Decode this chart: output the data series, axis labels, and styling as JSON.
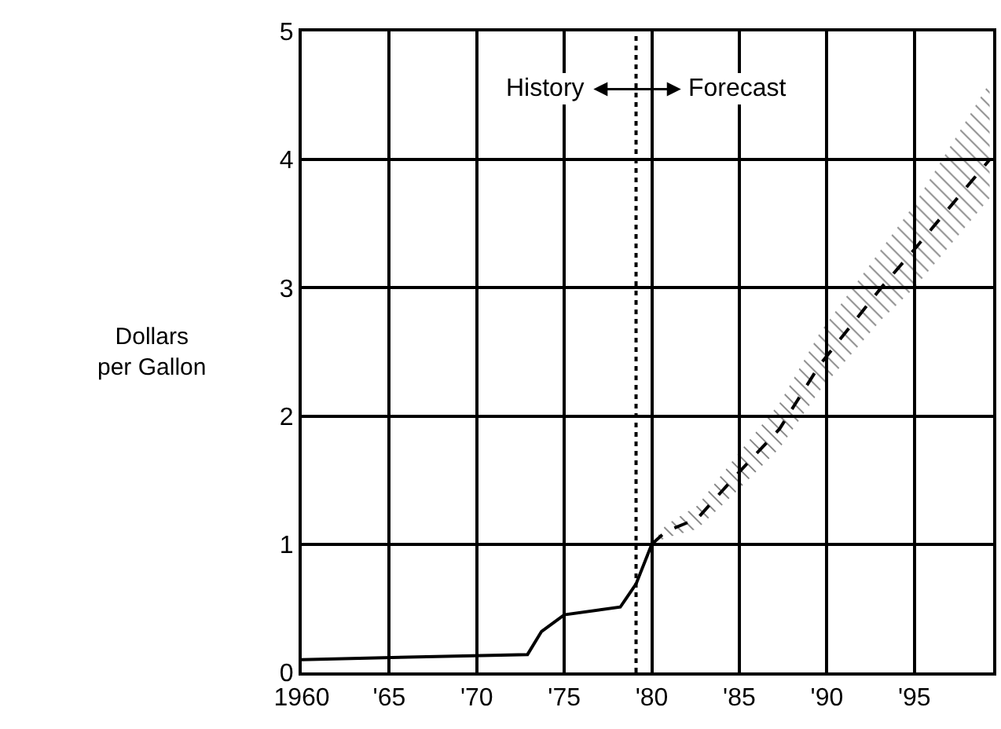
{
  "chart_data": {
    "type": "line",
    "ylabel": "Dollars\nper Gallon",
    "annotations": [
      "History",
      "Forecast"
    ],
    "series": [
      {
        "color": "#000000",
        "line_style": "solid",
        "x": [
          1960,
          1972.9,
          1973.7,
          1975,
          1978.2,
          1979.1,
          1980
        ],
        "values": [
          0.1,
          0.14,
          0.32,
          0.45,
          0.51,
          0.69,
          1.0
        ]
      },
      {
        "color": "#000000",
        "line_style": "dashed",
        "x": [
          1980,
          1980.8,
          1982.6,
          1984.9,
          1987.3,
          1989.6,
          1993.1,
          1995,
          1999.3
        ],
        "values": [
          1.0,
          1.1,
          1.2,
          1.55,
          1.9,
          2.4,
          3.0,
          3.3,
          4.0
        ],
        "lower": [
          1.0,
          1.05,
          1.12,
          1.42,
          1.75,
          2.2,
          2.75,
          3.0,
          3.7
        ],
        "upper": [
          1.0,
          1.15,
          1.3,
          1.7,
          2.1,
          2.65,
          3.3,
          3.65,
          4.6
        ]
      }
    ],
    "ref_lines": [
      {
        "axis": "x",
        "value": 1979.1,
        "color": "#000000",
        "line_style": "dotted"
      }
    ],
    "xlim": [
      1960,
      1999.5
    ],
    "xticks": [
      1960,
      {
        "value": 1965,
        "label": "'65"
      },
      {
        "value": 1970,
        "label": "'70"
      },
      {
        "value": 1975,
        "label": "'75"
      },
      {
        "value": 1980,
        "label": "'80"
      },
      {
        "value": 1985,
        "label": "'85"
      },
      {
        "value": 1990,
        "label": "'90"
      },
      {
        "value": 1995,
        "label": "'95"
      }
    ],
    "ylim": [
      0,
      5
    ],
    "yticks": [
      0,
      1,
      2,
      3,
      4,
      5
    ],
    "grid": true,
    "marker": "none"
  }
}
